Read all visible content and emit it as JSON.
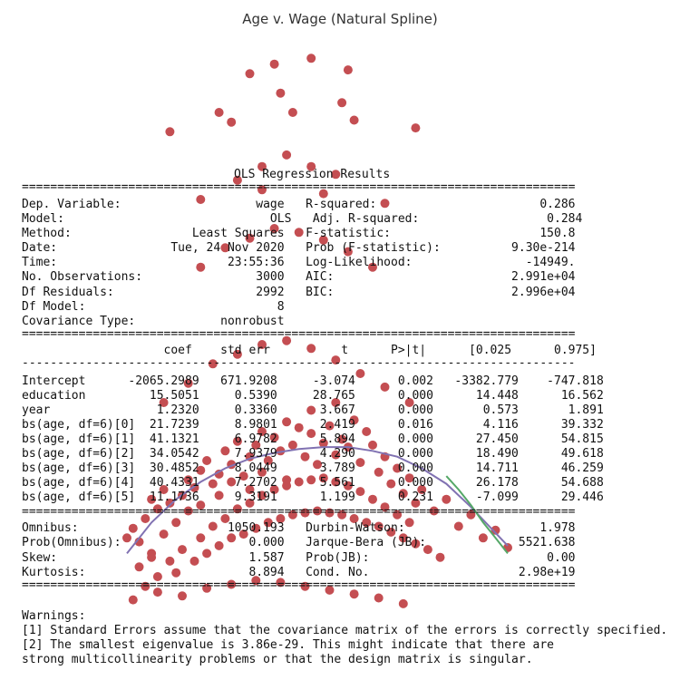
{
  "chart_data": {
    "type": "scatter",
    "title": "Age v. Wage (Natural Spline)",
    "xlabel": "",
    "ylabel": "",
    "xlim": [
      18,
      80
    ],
    "ylim": [
      20,
      320
    ],
    "grid": false,
    "point_color": "#c44e52",
    "series": [
      {
        "values": []
      }
    ],
    "fits": [
      {
        "color": "#8172b2",
        "x": [
          18,
          22,
          26,
          30,
          34,
          38,
          42,
          46,
          50,
          54,
          58,
          62,
          66,
          70,
          74,
          80
        ],
        "y": [
          62,
          78,
          90,
          99,
          106,
          111,
          114,
          116,
          117,
          117,
          115,
          112,
          106,
          98,
          86,
          66
        ]
      },
      {
        "color": "#55a868",
        "x": [
          70,
          72,
          74,
          76,
          78,
          80
        ],
        "y": [
          102,
          95,
          87,
          78,
          70,
          62
        ]
      }
    ],
    "points": {
      "x": [
        18,
        19,
        20,
        21,
        22,
        22,
        23,
        24,
        24,
        25,
        26,
        27,
        28,
        28,
        29,
        30,
        30,
        31,
        32,
        33,
        33,
        34,
        35,
        35,
        36,
        37,
        38,
        38,
        39,
        40,
        40,
        41,
        42,
        43,
        44,
        44,
        45,
        46,
        47,
        48,
        48,
        49,
        50,
        51,
        52,
        52,
        53,
        54,
        55,
        56,
        57,
        58,
        59,
        60,
        61,
        62,
        63,
        64,
        65,
        66,
        68,
        70,
        72,
        74,
        76,
        78,
        80,
        20,
        22,
        25,
        27,
        30,
        32,
        34,
        36,
        38,
        40,
        42,
        44,
        46,
        48,
        50,
        52,
        54,
        56,
        58,
        60,
        62,
        64,
        21,
        23,
        26,
        29,
        31,
        33,
        35,
        37,
        39,
        41,
        43,
        45,
        47,
        49,
        51,
        53,
        55,
        57,
        59,
        61,
        63,
        65,
        67,
        69,
        24,
        28,
        32,
        36,
        40,
        44,
        48,
        52,
        56,
        60,
        64,
        30,
        34,
        38,
        42,
        46,
        50,
        54,
        58,
        36,
        40,
        44,
        48,
        52,
        25,
        35,
        45,
        55,
        65,
        19,
        23,
        27,
        31,
        35,
        39,
        43,
        47,
        51,
        55,
        59,
        63,
        30,
        40,
        50,
        60,
        33,
        43,
        53,
        42,
        48,
        54,
        38
      ],
      "y": [
        70,
        75,
        68,
        80,
        62,
        90,
        85,
        72,
        95,
        88,
        78,
        92,
        100,
        84,
        96,
        105,
        87,
        110,
        98,
        103,
        92,
        115,
        108,
        99,
        120,
        102,
        112,
        95,
        118,
        125,
        104,
        110,
        122,
        115,
        130,
        100,
        118,
        127,
        112,
        124,
        136,
        108,
        119,
        128,
        113,
        140,
        121,
        117,
        131,
        109,
        125,
        118,
        104,
        112,
        98,
        106,
        93,
        101,
        88,
        95,
        84,
        90,
        76,
        82,
        70,
        74,
        65,
        55,
        60,
        58,
        64,
        70,
        76,
        80,
        85,
        88,
        92,
        95,
        97,
        99,
        100,
        101,
        99,
        97,
        94,
        90,
        86,
        82,
        78,
        45,
        50,
        52,
        58,
        62,
        66,
        70,
        72,
        75,
        78,
        80,
        82,
        83,
        84,
        83,
        82,
        80,
        78,
        76,
        73,
        70,
        67,
        64,
        60,
        140,
        150,
        160,
        165,
        170,
        172,
        168,
        162,
        155,
        148,
        140,
        210,
        220,
        225,
        230,
        228,
        224,
        218,
        210,
        255,
        262,
        268,
        262,
        258,
        280,
        285,
        290,
        286,
        282,
        38,
        42,
        40,
        44,
        46,
        48,
        47,
        45,
        43,
        41,
        39,
        36,
        245,
        250,
        248,
        243,
        290,
        300,
        295,
        315,
        318,
        312,
        310
      ]
    }
  },
  "summary": {
    "heading": "OLS Regression Results",
    "sep_double": "==============================================================================",
    "sep_single": "------------------------------------------------------------------------------",
    "info_lines": [
      "Dep. Variable:                   wage   R-squared:                       0.286",
      "Model:                             OLS   Adj. R-squared:                  0.284",
      "Method:                 Least Squares   F-statistic:                     150.8",
      "Date:                Tue, 24 Nov 2020   Prob (F-statistic):          9.30e-214",
      "Time:                        23:55:36   Log-Likelihood:                -14949.",
      "No. Observations:                3000   AIC:                         2.991e+04",
      "Df Residuals:                    2992   BIC:                         2.996e+04",
      "Df Model:                           8",
      "Covariance Type:            nonrobust"
    ],
    "coef_header": "                    coef    std err          t      P>|t|      [0.025      0.975]",
    "coef_lines": [
      "Intercept      -2065.2989   671.9208     -3.074      0.002   -3382.779    -747.818",
      "education         15.5051     0.5390     28.765      0.000      14.448      16.562",
      "year               1.2320     0.3360      3.667      0.000       0.573       1.891",
      "bs(age, df=6)[0]  21.7239     8.9801      2.419      0.016       4.116      39.332",
      "bs(age, df=6)[1]  41.1321     6.9782      5.894      0.000      27.450      54.815",
      "bs(age, df=6)[2]  34.0542     7.9379      4.290      0.000      18.490      49.618",
      "bs(age, df=6)[3]  30.4852     8.0449      3.789      0.000      14.711      46.259",
      "bs(age, df=6)[4]  40.4331     7.2702      5.561      0.000      26.178      54.688",
      "bs(age, df=6)[5]  11.1736     9.3191      1.199      0.231      -7.099      29.446"
    ],
    "diag_lines": [
      "Omnibus:                     1050.193   Durbin-Watson:                   1.978",
      "Prob(Omnibus):                  0.000   Jarque-Bera (JB):             5521.638",
      "Skew:                           1.587   Prob(JB):                         0.00",
      "Kurtosis:                       8.894   Cond. No.                     2.98e+19"
    ],
    "warnings_title": "Warnings:",
    "warnings": [
      "[1] Standard Errors assume that the covariance matrix of the errors is correctly specified.",
      "[2] The smallest eigenvalue is 3.86e-29. This might indicate that there are",
      "strong multicollinearity problems or that the design matrix is singular."
    ]
  }
}
